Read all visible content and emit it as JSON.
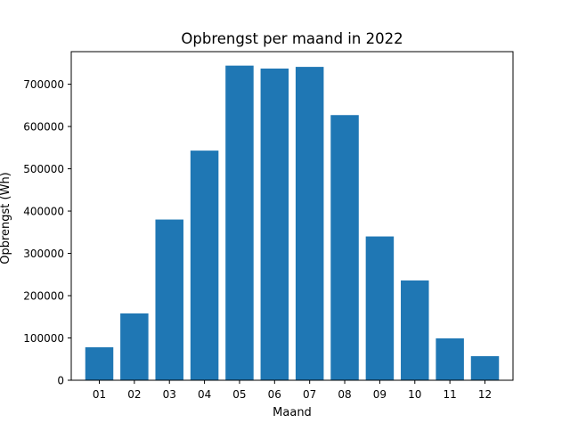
{
  "chart_data": {
    "type": "bar",
    "title": "Opbrengst per maand in 2022",
    "xlabel": "Maand",
    "ylabel": "Opbrengst (Wh)",
    "categories": [
      "01",
      "02",
      "03",
      "04",
      "05",
      "06",
      "07",
      "08",
      "09",
      "10",
      "11",
      "12"
    ],
    "values": [
      78000,
      158000,
      380000,
      543000,
      744000,
      737000,
      741000,
      627000,
      340000,
      236000,
      99000,
      57000
    ],
    "ylim": [
      0,
      777000
    ],
    "yticks": [
      0,
      100000,
      200000,
      300000,
      400000,
      500000,
      600000,
      700000
    ],
    "ytick_labels": [
      "0",
      "100000",
      "200000",
      "300000",
      "400000",
      "500000",
      "600000",
      "700000"
    ],
    "bar_color": "#1f77b4",
    "grid": false,
    "legend": false
  }
}
